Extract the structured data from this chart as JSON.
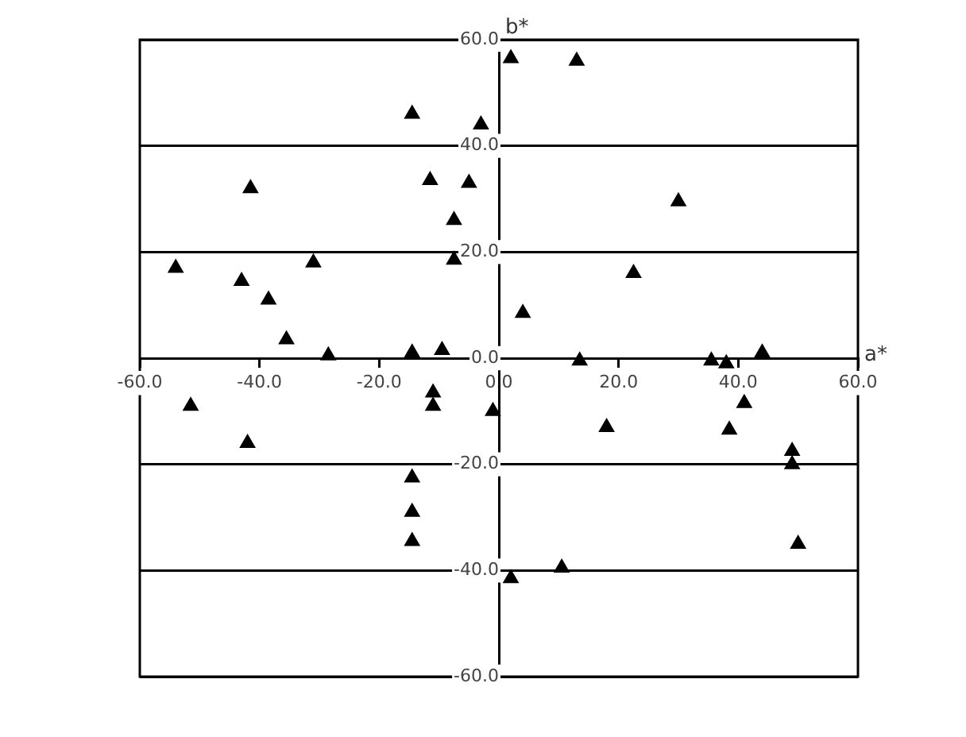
{
  "chart_data": {
    "type": "scatter",
    "xlabel": "a*",
    "ylabel": "b*",
    "marker": "triangle",
    "grid": "y",
    "legend": false,
    "xlim": [
      -60,
      60
    ],
    "ylim": [
      -60,
      60
    ],
    "xticks": [
      {
        "value": -60,
        "label": "-60.0"
      },
      {
        "value": -40,
        "label": "-40.0"
      },
      {
        "value": -20,
        "label": "-20.0"
      },
      {
        "value": 0,
        "label": "0.0"
      },
      {
        "value": 20,
        "label": "20.0"
      },
      {
        "value": 40,
        "label": "40.0"
      },
      {
        "value": 60,
        "label": "60.0"
      }
    ],
    "yticks": [
      {
        "value": -60,
        "label": "-60.0"
      },
      {
        "value": -40,
        "label": "-40.0"
      },
      {
        "value": -20,
        "label": "-20.0"
      },
      {
        "value": 0,
        "label": "0.0"
      },
      {
        "value": 20,
        "label": "20.0"
      },
      {
        "value": 40,
        "label": "40.0"
      },
      {
        "value": 60,
        "label": "60.0"
      }
    ],
    "series": [
      {
        "color": "#000000",
        "x": [
          -54,
          -41.5,
          -43,
          -38.5,
          -31,
          -35.5,
          -28.5,
          -14.5,
          -3,
          -11.5,
          -5,
          -7.5,
          -7.5,
          -14.5,
          -9.5,
          2,
          13,
          30,
          22.5,
          4,
          13.5,
          35.5,
          38,
          44,
          -51.5,
          -42,
          -11,
          -11,
          -1,
          -14.5,
          -14.5,
          -14.5,
          2,
          10.5,
          18,
          41,
          38.5,
          49,
          49,
          50
        ],
        "values": [
          17,
          32,
          14.5,
          11,
          18,
          3.5,
          0.5,
          46,
          44,
          33.5,
          33,
          26,
          18.5,
          1,
          1.5,
          56.5,
          56,
          29.5,
          16,
          8.5,
          -0.5,
          -0.5,
          -1,
          1,
          -9,
          -16,
          -6.5,
          -9,
          -10,
          -22.5,
          -29,
          -34.5,
          -41.5,
          -39.5,
          -13,
          -8.5,
          -13.5,
          -17.5,
          -20,
          -35
        ]
      }
    ]
  }
}
